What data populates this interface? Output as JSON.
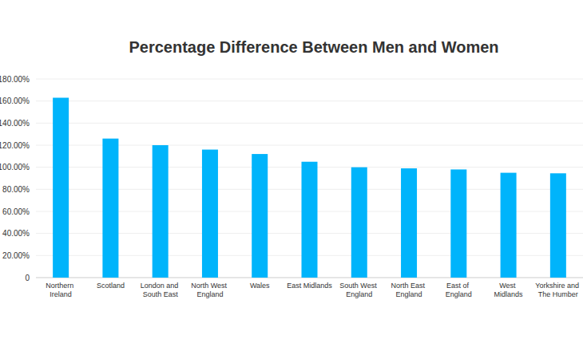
{
  "chart_data": {
    "type": "bar",
    "title": "Percentage Difference Between Men and Women",
    "categories": [
      "Northern Ireland",
      "Scotland",
      "London and South East",
      "North West England",
      "Wales",
      "East Midlands",
      "South West England",
      "North East England",
      "East of England",
      "West Midlands",
      "Yorkshire and The Humber"
    ],
    "values": [
      163,
      126,
      120,
      116,
      112,
      105,
      100,
      99,
      98,
      95,
      94.5
    ],
    "color": "#00b4fb",
    "ylim": [
      0,
      180
    ],
    "yticks": [
      0,
      {
        "value": 20,
        "label": "20.00%"
      },
      {
        "value": 40,
        "label": "40.00%"
      },
      {
        "value": 60,
        "label": "60.00%"
      },
      {
        "value": 80,
        "label": "80.00%"
      },
      {
        "value": 100,
        "label": "100.00%"
      },
      {
        "value": 120,
        "label": "120.00%"
      },
      {
        "value": 140,
        "label": "140.00%"
      },
      {
        "value": 160,
        "label": "160.00%"
      },
      {
        "value": 180,
        "label": "180.00%"
      }
    ],
    "grid": true
  }
}
